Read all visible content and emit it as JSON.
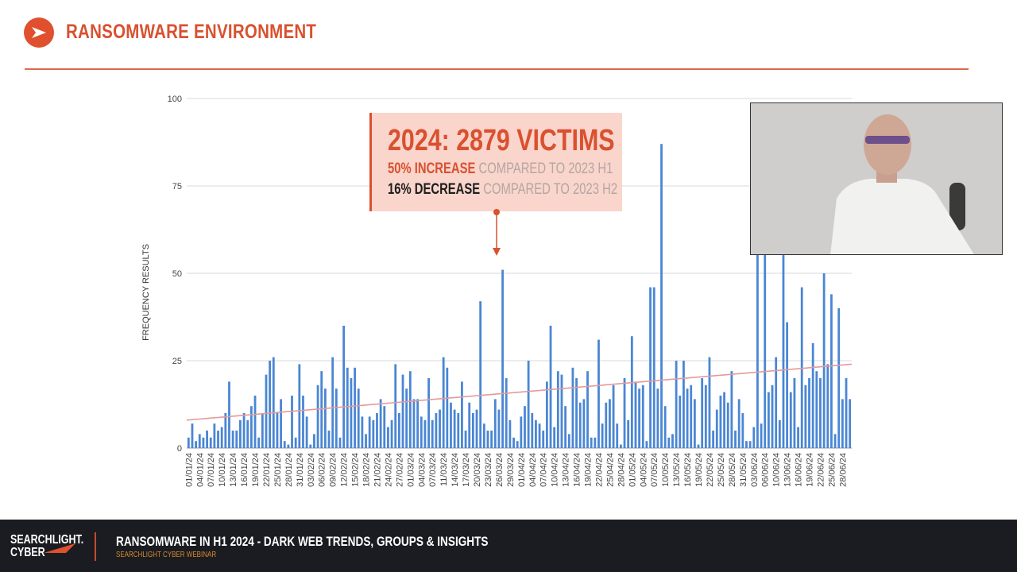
{
  "header": {
    "title": "RANSOMWARE ENVIRONMENT",
    "logo_icon": "arrow-right-icon",
    "accent": "#d9512f"
  },
  "callout": {
    "headline": "2024:  2879 VICTIMS",
    "line1_strong": "50% INCREASE",
    "line1_rest": " COMPARED TO 2023 H1",
    "line2_strong": "16% DECREASE",
    "line2_rest": " COMPARED TO 2023 H2"
  },
  "chart_data": {
    "type": "bar",
    "title": "",
    "xlabel": "",
    "ylabel": "FREQUENCY RESULTS",
    "ylim": [
      0,
      100
    ],
    "yticks": [
      0,
      25,
      50,
      75,
      100
    ],
    "grid": true,
    "bar_color": "#4a86d4",
    "trend_color": "#e39a9a",
    "trendline": {
      "type": "linear",
      "start": 8,
      "end": 24
    },
    "tick_labels": [
      "01/01/24",
      "04/01/24",
      "07/01/24",
      "10/01/24",
      "13/01/24",
      "16/01/24",
      "19/01/24",
      "22/01/24",
      "25/01/24",
      "28/01/24",
      "31/01/24",
      "03/02/24",
      "06/02/24",
      "09/02/24",
      "12/02/24",
      "15/02/24",
      "18/02/24",
      "21/02/24",
      "24/02/24",
      "27/02/24",
      "01/03/24",
      "04/03/24",
      "07/03/24",
      "11/03/24",
      "14/03/24",
      "17/03/24",
      "20/03/24",
      "23/03/24",
      "26/03/24",
      "29/03/24",
      "01/04/24",
      "04/04/24",
      "07/04/24",
      "10/04/24",
      "13/04/24",
      "16/04/24",
      "19/04/24",
      "22/04/24",
      "25/04/24",
      "28/04/24",
      "01/05/24",
      "04/05/24",
      "07/05/24",
      "10/05/24",
      "13/05/24",
      "16/05/24",
      "19/05/24",
      "22/05/24",
      "25/05/24",
      "28/05/24",
      "31/05/24",
      "03/06/24",
      "06/06/24",
      "10/06/24",
      "13/06/24",
      "16/06/24",
      "19/06/24",
      "22/06/24",
      "25/06/24",
      "28/06/24"
    ],
    "values": [
      3,
      7,
      2,
      4,
      3,
      5,
      3,
      7,
      5,
      6,
      10,
      19,
      5,
      5,
      8,
      10,
      8,
      12,
      15,
      3,
      10,
      21,
      25,
      26,
      10,
      14,
      2,
      1,
      15,
      3,
      24,
      15,
      9,
      1,
      4,
      18,
      22,
      17,
      5,
      26,
      17,
      3,
      35,
      23,
      20,
      23,
      17,
      9,
      4,
      9,
      8,
      10,
      14,
      12,
      6,
      8,
      24,
      10,
      21,
      17,
      22,
      14,
      14,
      9,
      8,
      20,
      8,
      10,
      11,
      26,
      23,
      13,
      11,
      10,
      19,
      5,
      13,
      10,
      11,
      42,
      7,
      5,
      5,
      14,
      11,
      51,
      20,
      8,
      3,
      2,
      9,
      12,
      25,
      10,
      8,
      7,
      5,
      19,
      35,
      6,
      22,
      21,
      12,
      4,
      23,
      20,
      13,
      14,
      22,
      3,
      3,
      31,
      7,
      13,
      14,
      18,
      7,
      1,
      20,
      8,
      32,
      19,
      17,
      18,
      2,
      46,
      46,
      17,
      87,
      12,
      3,
      4,
      25,
      15,
      25,
      17,
      18,
      14,
      1,
      20,
      18,
      26,
      5,
      11,
      15,
      16,
      13,
      22,
      5,
      14,
      10,
      2,
      2,
      6,
      60,
      7,
      60,
      16,
      18,
      26,
      8,
      56,
      36,
      16,
      20,
      6,
      46,
      18,
      20,
      30,
      22,
      20,
      50,
      24,
      44,
      4,
      40,
      14,
      20,
      14
    ]
  },
  "footer": {
    "brand_line1": "SEARCHLIGHT.",
    "brand_line2": "CYBER",
    "title": "RANSOMWARE IN H1 2024 - DARK WEB TRENDS, GROUPS & INSIGHTS",
    "subtitle": "SEARCHLIGHT CYBER WEBINAR"
  }
}
